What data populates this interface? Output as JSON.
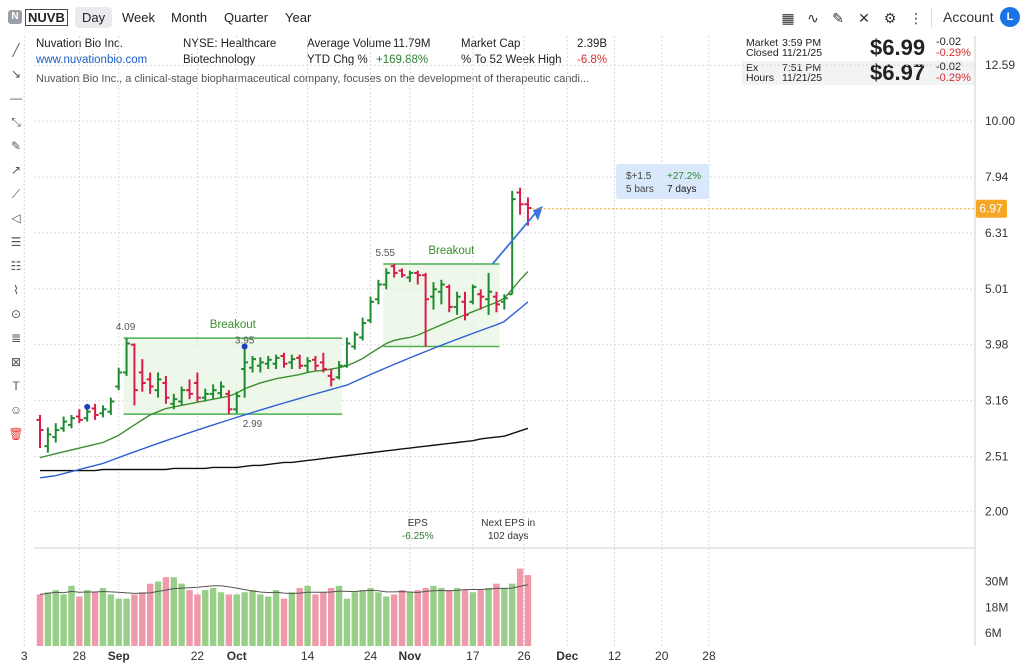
{
  "toolbar": {
    "badge": "N",
    "symbol": "NUVB",
    "periods": [
      "Day",
      "Week",
      "Month",
      "Quarter",
      "Year"
    ],
    "active_period": "Day",
    "account_label": "Account",
    "avatar_letter": "L"
  },
  "company": {
    "name": "Nuvation Bio Inc.",
    "url": "www.nuvationbio.com",
    "exchange_sector": "NYSE: Healthcare",
    "industry": "Biotechnology",
    "description": "Nuvation Bio Inc., a clinical-stage biopharmaceutical company, focuses on the development of therapeutic candi...",
    "avg_volume_label": "Average Volume",
    "avg_volume": "11.79M",
    "ytd_label": "YTD Chg %",
    "ytd": "+169.88%",
    "market_cap_label": "Market Cap",
    "market_cap": "2.39B",
    "to_52w_label": "% To 52 Week High",
    "to_52w": "-6.8%"
  },
  "quote": {
    "market_label_1": "Market",
    "market_label_2": "Closed",
    "market_time": "3:59 PM",
    "market_date": "11/21/25",
    "market_price": "$6.99",
    "market_chg": "-0.02",
    "market_chg_pct": "-0.29%",
    "ext_label_1": "Ex",
    "ext_label_2": "Hours",
    "ext_time": "7:51 PM",
    "ext_date": "11/21/25",
    "ext_price": "$6.97",
    "ext_chg": "-0.02",
    "ext_chg_pct": "-0.29%"
  },
  "colors": {
    "up": "#1f8a2f",
    "down": "#d81b4a",
    "ma_green": "#3c8f2f",
    "ma_blue": "#2f5fd4",
    "ma_black": "#111111",
    "box_fill": "#e8f5e3",
    "box_line": "#4caf50",
    "vol_up": "#98cf88",
    "vol_down": "#ee9aaa",
    "price_tag": "#f5a623",
    "grid": "#d9d9d9"
  },
  "chart_data": {
    "type": "candlestick",
    "scale": "log",
    "ylim": [
      1.78,
      14.2
    ],
    "y_ticks": [
      2.0,
      2.51,
      3.16,
      3.98,
      5.01,
      6.31,
      7.94,
      10.0,
      12.59
    ],
    "y_tick_labels": [
      "2.00",
      "2.51",
      "3.16",
      "3.98",
      "5.01",
      "6.31",
      "7.94",
      "10.00",
      "12.59"
    ],
    "x_ticks": [
      {
        "label": "3",
        "i": -2
      },
      {
        "label": "28",
        "i": 5
      },
      {
        "label": "Sep",
        "i": 10
      },
      {
        "label": "22",
        "i": 20
      },
      {
        "label": "Oct",
        "i": 25
      },
      {
        "label": "14",
        "i": 34
      },
      {
        "label": "24",
        "i": 42
      },
      {
        "label": "Nov",
        "i": 47
      },
      {
        "label": "17",
        "i": 55
      },
      {
        "label": "26",
        "i": 61.5
      },
      {
        "label": "Dec",
        "i": 67
      },
      {
        "label": "12",
        "i": 73
      },
      {
        "label": "20",
        "i": 79
      },
      {
        "label": "28",
        "i": 85
      }
    ],
    "candles": [
      {
        "o": 2.92,
        "h": 2.98,
        "l": 2.6,
        "c": 2.8
      },
      {
        "o": 2.62,
        "h": 2.83,
        "l": 2.55,
        "c": 2.75
      },
      {
        "o": 2.72,
        "h": 2.88,
        "l": 2.66,
        "c": 2.8
      },
      {
        "o": 2.82,
        "h": 2.96,
        "l": 2.78,
        "c": 2.9
      },
      {
        "o": 2.86,
        "h": 2.98,
        "l": 2.82,
        "c": 2.94
      },
      {
        "o": 2.96,
        "h": 3.05,
        "l": 2.88,
        "c": 2.92
      },
      {
        "o": 2.94,
        "h": 3.08,
        "l": 2.9,
        "c": 3.02
      },
      {
        "o": 3.06,
        "h": 3.12,
        "l": 2.92,
        "c": 2.98
      },
      {
        "o": 3.0,
        "h": 3.1,
        "l": 2.95,
        "c": 3.05
      },
      {
        "o": 3.02,
        "h": 3.2,
        "l": 2.98,
        "c": 3.15
      },
      {
        "o": 3.35,
        "h": 3.62,
        "l": 3.3,
        "c": 3.55
      },
      {
        "o": 3.55,
        "h": 4.09,
        "l": 3.5,
        "c": 4.0
      },
      {
        "o": 3.98,
        "h": 4.0,
        "l": 3.1,
        "c": 3.3
      },
      {
        "o": 3.55,
        "h": 3.75,
        "l": 3.28,
        "c": 3.4
      },
      {
        "o": 3.45,
        "h": 3.55,
        "l": 3.25,
        "c": 3.35
      },
      {
        "o": 3.3,
        "h": 3.55,
        "l": 3.2,
        "c": 3.45
      },
      {
        "o": 3.4,
        "h": 3.5,
        "l": 3.12,
        "c": 3.2
      },
      {
        "o": 3.12,
        "h": 3.25,
        "l": 3.05,
        "c": 3.18
      },
      {
        "o": 3.15,
        "h": 3.35,
        "l": 3.1,
        "c": 3.3
      },
      {
        "o": 3.3,
        "h": 3.45,
        "l": 3.18,
        "c": 3.25
      },
      {
        "o": 3.4,
        "h": 3.55,
        "l": 3.15,
        "c": 3.2
      },
      {
        "o": 3.2,
        "h": 3.32,
        "l": 3.15,
        "c": 3.25
      },
      {
        "o": 3.25,
        "h": 3.38,
        "l": 3.18,
        "c": 3.3
      },
      {
        "o": 3.26,
        "h": 3.42,
        "l": 3.2,
        "c": 3.35
      },
      {
        "o": 3.25,
        "h": 3.3,
        "l": 2.99,
        "c": 3.05
      },
      {
        "o": 3.05,
        "h": 3.28,
        "l": 3.0,
        "c": 3.22
      },
      {
        "o": 3.6,
        "h": 3.95,
        "l": 3.2,
        "c": 3.7
      },
      {
        "o": 3.62,
        "h": 3.8,
        "l": 3.55,
        "c": 3.75
      },
      {
        "o": 3.65,
        "h": 3.78,
        "l": 3.55,
        "c": 3.7
      },
      {
        "o": 3.68,
        "h": 3.8,
        "l": 3.6,
        "c": 3.74
      },
      {
        "o": 3.68,
        "h": 3.82,
        "l": 3.6,
        "c": 3.77
      },
      {
        "o": 3.8,
        "h": 3.85,
        "l": 3.62,
        "c": 3.68
      },
      {
        "o": 3.7,
        "h": 3.82,
        "l": 3.6,
        "c": 3.75
      },
      {
        "o": 3.77,
        "h": 3.82,
        "l": 3.6,
        "c": 3.65
      },
      {
        "o": 3.65,
        "h": 3.78,
        "l": 3.55,
        "c": 3.72
      },
      {
        "o": 3.74,
        "h": 3.8,
        "l": 3.58,
        "c": 3.65
      },
      {
        "o": 3.7,
        "h": 3.85,
        "l": 3.55,
        "c": 3.6
      },
      {
        "o": 3.5,
        "h": 3.6,
        "l": 3.35,
        "c": 3.45
      },
      {
        "o": 3.48,
        "h": 3.72,
        "l": 3.45,
        "c": 3.65
      },
      {
        "o": 3.65,
        "h": 4.1,
        "l": 3.62,
        "c": 4.0
      },
      {
        "o": 3.95,
        "h": 4.2,
        "l": 3.9,
        "c": 4.15
      },
      {
        "o": 4.1,
        "h": 4.45,
        "l": 4.05,
        "c": 4.35
      },
      {
        "o": 4.4,
        "h": 4.85,
        "l": 4.35,
        "c": 4.75
      },
      {
        "o": 4.8,
        "h": 5.2,
        "l": 4.7,
        "c": 5.1
      },
      {
        "o": 5.1,
        "h": 5.45,
        "l": 5.0,
        "c": 5.35
      },
      {
        "o": 5.5,
        "h": 5.55,
        "l": 5.25,
        "c": 5.35
      },
      {
        "o": 5.4,
        "h": 5.45,
        "l": 5.25,
        "c": 5.3
      },
      {
        "o": 5.25,
        "h": 5.4,
        "l": 5.15,
        "c": 5.35
      },
      {
        "o": 5.35,
        "h": 5.4,
        "l": 5.1,
        "c": 5.3
      },
      {
        "o": 5.3,
        "h": 5.35,
        "l": 3.95,
        "c": 4.8
      },
      {
        "o": 4.85,
        "h": 5.15,
        "l": 4.6,
        "c": 5.0
      },
      {
        "o": 4.95,
        "h": 5.2,
        "l": 4.7,
        "c": 5.1
      },
      {
        "o": 5.05,
        "h": 5.1,
        "l": 4.55,
        "c": 4.65
      },
      {
        "o": 4.65,
        "h": 4.95,
        "l": 4.5,
        "c": 4.85
      },
      {
        "o": 4.75,
        "h": 4.95,
        "l": 4.4,
        "c": 4.5
      },
      {
        "o": 4.75,
        "h": 5.1,
        "l": 4.7,
        "c": 5.05
      },
      {
        "o": 4.9,
        "h": 5.0,
        "l": 4.6,
        "c": 4.85
      },
      {
        "o": 4.8,
        "h": 5.35,
        "l": 4.5,
        "c": 4.95
      },
      {
        "o": 4.85,
        "h": 4.95,
        "l": 4.55,
        "c": 4.7
      },
      {
        "o": 4.75,
        "h": 4.9,
        "l": 4.6,
        "c": 4.82
      },
      {
        "o": 4.9,
        "h": 7.5,
        "l": 4.9,
        "c": 7.25
      },
      {
        "o": 7.45,
        "h": 7.6,
        "l": 6.8,
        "c": 7.1
      },
      {
        "o": 7.1,
        "h": 7.3,
        "l": 6.5,
        "c": 6.99
      }
    ],
    "ma_green": [
      2.5,
      2.52,
      2.54,
      2.56,
      2.58,
      2.6,
      2.62,
      2.64,
      2.66,
      2.7,
      2.74,
      2.8,
      2.86,
      2.92,
      2.98,
      3.02,
      3.06,
      3.08,
      3.1,
      3.12,
      3.14,
      3.16,
      3.18,
      3.2,
      3.22,
      3.26,
      3.32,
      3.36,
      3.4,
      3.43,
      3.46,
      3.48,
      3.5,
      3.52,
      3.55,
      3.57,
      3.58,
      3.6,
      3.62,
      3.65,
      3.7,
      3.76,
      3.84,
      3.92,
      4.0,
      4.05,
      4.08,
      4.1,
      4.14,
      4.2,
      4.26,
      4.32,
      4.38,
      4.44,
      4.5,
      4.56,
      4.62,
      4.68,
      4.74,
      4.82,
      5.0,
      5.2,
      5.38
    ],
    "ma_blue": [
      2.3,
      2.31,
      2.32,
      2.34,
      2.36,
      2.38,
      2.4,
      2.42,
      2.44,
      2.47,
      2.5,
      2.53,
      2.56,
      2.59,
      2.62,
      2.65,
      2.68,
      2.71,
      2.74,
      2.77,
      2.8,
      2.83,
      2.86,
      2.89,
      2.92,
      2.95,
      2.98,
      3.01,
      3.04,
      3.07,
      3.1,
      3.13,
      3.16,
      3.19,
      3.22,
      3.25,
      3.28,
      3.31,
      3.34,
      3.37,
      3.42,
      3.47,
      3.52,
      3.57,
      3.62,
      3.67,
      3.72,
      3.77,
      3.82,
      3.87,
      3.92,
      3.97,
      4.02,
      4.07,
      4.12,
      4.17,
      4.22,
      4.27,
      4.32,
      4.38,
      4.5,
      4.62,
      4.75
    ],
    "ma_black": [
      2.37,
      2.37,
      2.37,
      2.37,
      2.37,
      2.37,
      2.37,
      2.37,
      2.38,
      2.38,
      2.38,
      2.38,
      2.38,
      2.38,
      2.38,
      2.38,
      2.38,
      2.39,
      2.39,
      2.39,
      2.39,
      2.39,
      2.4,
      2.4,
      2.4,
      2.4,
      2.41,
      2.42,
      2.42,
      2.43,
      2.44,
      2.45,
      2.45,
      2.46,
      2.47,
      2.48,
      2.49,
      2.5,
      2.51,
      2.52,
      2.53,
      2.54,
      2.55,
      2.56,
      2.57,
      2.58,
      2.59,
      2.6,
      2.61,
      2.62,
      2.63,
      2.64,
      2.65,
      2.66,
      2.67,
      2.68,
      2.7,
      2.71,
      2.72,
      2.73,
      2.76,
      2.79,
      2.82
    ],
    "volume": {
      "y_tick_labels": [
        "30M",
        "18M",
        "6M"
      ],
      "y_ticks": [
        30,
        18,
        6
      ],
      "ylim": [
        0,
        40
      ],
      "values": [
        24,
        25,
        26,
        24,
        28,
        23,
        26,
        25,
        27,
        24,
        22,
        22,
        24,
        25,
        29,
        30,
        32,
        32,
        29,
        26,
        24,
        26,
        27,
        25,
        24,
        24,
        25,
        26,
        24,
        23,
        26,
        22,
        25,
        27,
        28,
        24,
        25,
        27,
        28,
        22,
        25,
        26,
        27,
        25,
        23,
        24,
        26,
        25,
        26,
        27,
        28,
        27,
        26,
        27,
        26,
        25,
        26,
        27,
        29,
        27,
        29,
        36,
        33
      ]
    },
    "annotations": {
      "boxes": [
        {
          "title": "Breakout",
          "start": 11,
          "end": 38,
          "top": 4.09,
          "bottom": 2.99,
          "hi_label": "4.09",
          "lo_label": "2.99",
          "mid_label": "3.95",
          "mid_at": 26
        },
        {
          "title": "Breakout",
          "start": 44,
          "end": 58,
          "top": 5.55,
          "bottom": 3.95,
          "hi_label": "5.55"
        }
      ],
      "events": [
        {
          "label": "EPS",
          "sub": "-6.25%",
          "at": 48
        },
        {
          "label": "Next EPS in",
          "sub": "102 days",
          "at": 59.5
        }
      ],
      "measure": {
        "line1_a": "$+1.5",
        "line1_b": "+27.2%",
        "line2_a": "5 bars",
        "line2_b": "7 days"
      },
      "price_tag": "6.97",
      "dots": [
        6,
        26
      ]
    }
  }
}
